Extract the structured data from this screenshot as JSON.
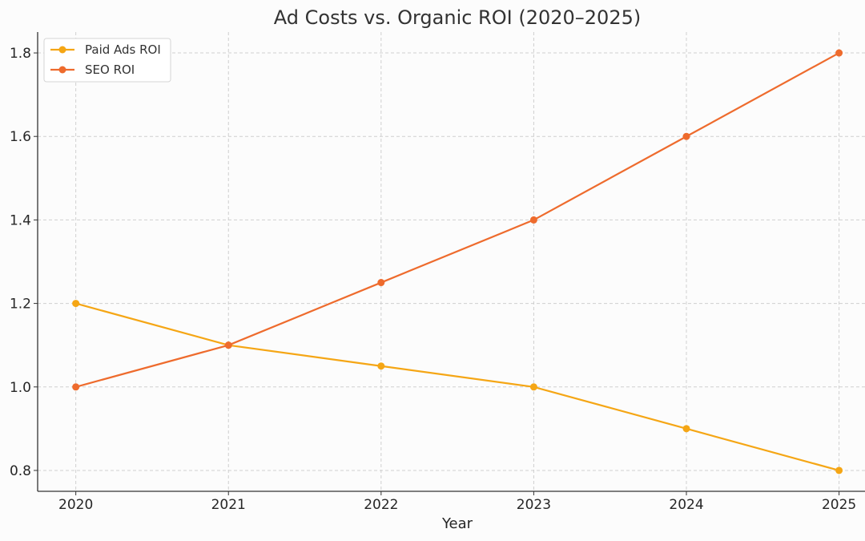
{
  "chart_data": {
    "type": "line",
    "title": "Ad Costs vs. Organic ROI (2020–2025)",
    "xlabel": "Year",
    "ylabel": "",
    "x": [
      2020,
      2021,
      2022,
      2023,
      2024,
      2025
    ],
    "x_tick_labels": [
      "2020",
      "2021",
      "2022",
      "2023",
      "2024",
      "2025"
    ],
    "y_ticks": [
      0.8,
      1.0,
      1.2,
      1.4,
      1.6,
      1.8
    ],
    "y_tick_labels": [
      "0.8",
      "1.0",
      "1.2",
      "1.4",
      "1.6",
      "1.8"
    ],
    "ylim": [
      0.75,
      1.85
    ],
    "xlim": [
      2019.75,
      2025.17
    ],
    "grid": true,
    "legend_position": "top-left",
    "series": [
      {
        "name": "Paid Ads ROI",
        "color": "#f5a615",
        "values": [
          1.2,
          1.1,
          1.05,
          1.0,
          0.9,
          0.8
        ]
      },
      {
        "name": "SEO ROI",
        "color": "#ee6b2d",
        "values": [
          1.0,
          1.1,
          1.25,
          1.4,
          1.6,
          1.8
        ]
      }
    ]
  }
}
